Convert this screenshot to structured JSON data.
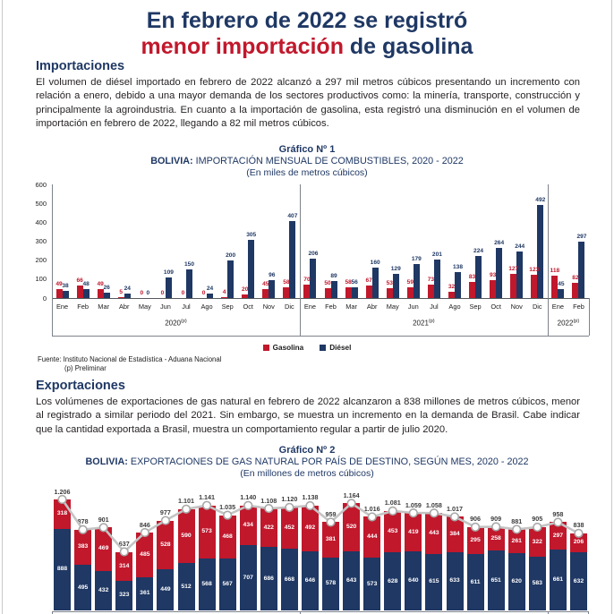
{
  "page_title": {
    "line1": "En febrero de 2022 se registró",
    "line2_red": "menor importación",
    "line2_rest": " de gasolina"
  },
  "colors": {
    "navy": "#1F3864",
    "red": "#C1182C",
    "line_gray": "#c4c4c4",
    "marker_stroke": "#a8a8a8",
    "axis": "#55585e",
    "total_label": "#3c3c3c"
  },
  "sections": {
    "importaciones": {
      "heading": "Importaciones",
      "body": "El volumen de diésel importado en febrero de 2022 alcanzó a 297 mil metros cúbicos presentando un incremento con relación a enero, debido a una mayor demanda de los sectores productivos como: la minería, transporte, construcción y principalmente la agroindustria. En cuanto a la importación de gasolina, esta registró una disminución en el volumen de importación en febrero de 2022, llegando a 82 mil metros cúbicos."
    },
    "exportaciones": {
      "heading": "Exportaciones",
      "body": "Los volúmenes de exportaciones de gas natural en febrero de 2022 alcanzaron a 838 millones de metros cúbicos, menor al registrado a similar periodo del 2021. Sin embargo, se muestra un incremento en la demanda de Brasil. Cabe indicar que la cantidad exportada a Brasil, muestra un comportamiento regular a partir de julio 2020."
    }
  },
  "source": {
    "line1": "Fuente: Instituto Nacional de Estadística - Aduana Nacional",
    "line2": "(p) Preliminar"
  },
  "chart_data": [
    {
      "type": "bar",
      "title": "Gráfico Nº 1",
      "subtitle_bold": "BOLIVIA:",
      "subtitle_rest": " IMPORTACIÓN MENSUAL DE COMBUSTIBLES, 2020 - 2022",
      "unit_label": "(En miles de metros cúbicos)",
      "ylim": [
        0,
        600
      ],
      "yticks": [
        600,
        500,
        400,
        300,
        200,
        100,
        0
      ],
      "categories": [
        "Ene",
        "Feb",
        "Mar",
        "Abr",
        "May",
        "Jun",
        "Jul",
        "Ago",
        "Sep",
        "Oct",
        "Nov",
        "Dic",
        "Ene",
        "Feb",
        "Mar",
        "Abr",
        "May",
        "Jun",
        "Jul",
        "Ago",
        "Sep",
        "Oct",
        "Nov",
        "Dic",
        "Ene",
        "Feb"
      ],
      "year_groups": [
        {
          "label": "2020",
          "sup": "(p)",
          "months": 12
        },
        {
          "label": "2021",
          "sup": "(p)",
          "months": 12
        },
        {
          "label": "2022",
          "sup": "(p)",
          "months": 2
        }
      ],
      "series": [
        {
          "name": "Gasolina",
          "color": "#C1182C",
          "values": [
            49,
            66,
            49,
            5,
            0,
            0,
            0,
            0,
            4,
            20,
            45,
            58,
            70,
            50,
            58,
            67,
            53,
            59,
            73,
            32,
            83,
            93,
            127,
            123,
            118,
            82
          ]
        },
        {
          "name": "Diésel",
          "color": "#1F3864",
          "values": [
            38,
            48,
            26,
            24,
            0,
            109,
            150,
            24,
            200,
            305,
            96,
            407,
            206,
            89,
            56,
            160,
            129,
            179,
            201,
            138,
            224,
            264,
            244,
            492,
            45,
            297
          ]
        }
      ],
      "legend_position": "bottom"
    },
    {
      "type": "stacked-bar-line",
      "title": "Gráfico Nº 2",
      "subtitle_bold": "BOLIVIA:",
      "subtitle_rest": " EXPORTACIONES DE GAS NATURAL POR PAÍS DE DESTINO, SEGÚN MES, 2020 - 2022",
      "unit_label": "(En millones de metros cúbicos)",
      "ylim": [
        0,
        1300
      ],
      "categories": [
        "Ene",
        "Feb",
        "Mar",
        "Abr",
        "May",
        "Jun",
        "Jul",
        "Ago",
        "Sep",
        "Oct",
        "Nov",
        "Dic",
        "Ene",
        "Feb",
        "Mar",
        "Abr",
        "May",
        "Jun",
        "Jul",
        "Ago",
        "Sep",
        "Oct",
        "Nov",
        "Dic",
        "Ene",
        "Feb"
      ],
      "year_groups": [
        {
          "months": 12
        },
        {
          "months": 12
        },
        {
          "months": 2
        }
      ],
      "series": [
        {
          "name": "serie-inferior-azul",
          "color": "#1F3864",
          "values": [
            888,
            495,
            432,
            323,
            361,
            449,
            512,
            568,
            567,
            707,
            686,
            668,
            646,
            578,
            643,
            573,
            628,
            640,
            615,
            633,
            611,
            651,
            620,
            583,
            661,
            632
          ]
        },
        {
          "name": "serie-superior-roja",
          "color": "#C1182C",
          "values": [
            318,
            383,
            469,
            314,
            485,
            528,
            590,
            573,
            468,
            434,
            422,
            452,
            492,
            381,
            520,
            444,
            453,
            419,
            443,
            384,
            295,
            258,
            261,
            322,
            297,
            206
          ]
        }
      ],
      "totals": [
        1206,
        878,
        901,
        637,
        846,
        977,
        1101,
        1141,
        1035,
        1140,
        1108,
        1120,
        1138,
        959,
        1164,
        1016,
        1081,
        1059,
        1058,
        1017,
        906,
        909,
        881,
        905,
        958,
        838
      ]
    }
  ]
}
